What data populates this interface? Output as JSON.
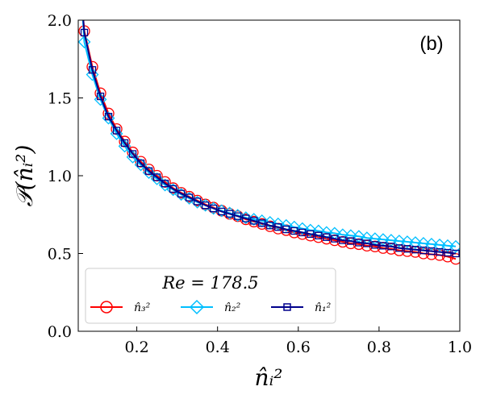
{
  "chart_data": {
    "type": "line",
    "title": "",
    "panel_label": "(b)",
    "xlabel": "n̂ᵢ²",
    "ylabel": "𝒫(n̂ᵢ²)",
    "xlim": [
      0.055,
      1.0
    ],
    "ylim": [
      0.0,
      2.0
    ],
    "xticks": [
      0.2,
      0.4,
      0.6,
      0.8,
      1.0
    ],
    "xtick_labels": [
      "0.2",
      "0.4",
      "0.6",
      "0.8",
      "1.0"
    ],
    "yticks": [
      0.0,
      0.5,
      1.0,
      1.5,
      2.0
    ],
    "ytick_labels": [
      "0.0",
      "0.5",
      "1.0",
      "1.5",
      "2.0"
    ],
    "legend": {
      "title": "Re = 178.5",
      "placement": "lower-left",
      "entries": [
        "n̂₃²",
        "n̂₂²",
        "n̂₁²"
      ]
    },
    "x": [
      0.07,
      0.09,
      0.11,
      0.13,
      0.15,
      0.17,
      0.19,
      0.21,
      0.23,
      0.25,
      0.27,
      0.29,
      0.31,
      0.33,
      0.35,
      0.37,
      0.39,
      0.41,
      0.43,
      0.45,
      0.47,
      0.49,
      0.51,
      0.53,
      0.55,
      0.57,
      0.59,
      0.61,
      0.63,
      0.65,
      0.67,
      0.69,
      0.71,
      0.73,
      0.75,
      0.77,
      0.79,
      0.81,
      0.83,
      0.85,
      0.87,
      0.89,
      0.91,
      0.93,
      0.95,
      0.97,
      0.99
    ],
    "series": [
      {
        "name": "n̂₃²",
        "color": "#ff0000",
        "marker": "circle",
        "values": [
          1.93,
          1.7,
          1.53,
          1.4,
          1.3,
          1.22,
          1.15,
          1.09,
          1.04,
          1.0,
          0.96,
          0.92,
          0.89,
          0.865,
          0.84,
          0.815,
          0.795,
          0.775,
          0.755,
          0.74,
          0.72,
          0.705,
          0.69,
          0.675,
          0.66,
          0.65,
          0.635,
          0.625,
          0.615,
          0.605,
          0.595,
          0.585,
          0.575,
          0.565,
          0.56,
          0.55,
          0.545,
          0.535,
          0.53,
          0.52,
          0.515,
          0.51,
          0.5,
          0.495,
          0.49,
          0.48,
          0.465
        ]
      },
      {
        "name": "n̂₂²",
        "color": "#00bfff",
        "marker": "diamond",
        "values": [
          1.86,
          1.65,
          1.49,
          1.37,
          1.27,
          1.19,
          1.12,
          1.07,
          1.02,
          0.98,
          0.94,
          0.91,
          0.88,
          0.855,
          0.83,
          0.81,
          0.79,
          0.775,
          0.76,
          0.745,
          0.73,
          0.72,
          0.71,
          0.7,
          0.69,
          0.68,
          0.67,
          0.66,
          0.65,
          0.645,
          0.635,
          0.63,
          0.62,
          0.615,
          0.61,
          0.6,
          0.595,
          0.59,
          0.585,
          0.58,
          0.575,
          0.57,
          0.565,
          0.56,
          0.555,
          0.55,
          0.545
        ]
      },
      {
        "name": "n̂₁²",
        "color": "#00008b",
        "marker": "square",
        "values": [
          1.92,
          1.68,
          1.51,
          1.38,
          1.29,
          1.21,
          1.14,
          1.08,
          1.03,
          0.99,
          0.95,
          0.915,
          0.885,
          0.86,
          0.835,
          0.81,
          0.79,
          0.77,
          0.755,
          0.74,
          0.725,
          0.71,
          0.695,
          0.68,
          0.67,
          0.655,
          0.645,
          0.635,
          0.625,
          0.615,
          0.605,
          0.595,
          0.585,
          0.58,
          0.57,
          0.565,
          0.555,
          0.55,
          0.545,
          0.535,
          0.53,
          0.525,
          0.52,
          0.515,
          0.51,
          0.505,
          0.5
        ]
      }
    ]
  }
}
